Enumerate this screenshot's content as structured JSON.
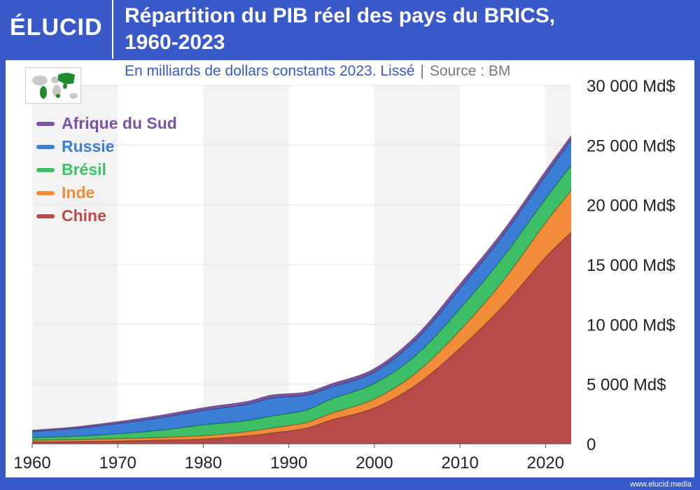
{
  "header": {
    "logo": "ÉLUCID",
    "title_line1": "Répartition du PIB réel des pays du BRICS,",
    "title_line2": "1960-2023"
  },
  "subtitle": {
    "main": "En milliards de dollars constants 2023. Lissé",
    "separator": "|",
    "source": "Source : BM"
  },
  "footer": "www.elucid.media",
  "chart_data": {
    "type": "area",
    "stacked": true,
    "title": "Répartition du PIB réel des pays du BRICS, 1960-2023",
    "subtitle": "En milliards de dollars constants 2023. Lissé | Source : BM",
    "x": [
      1960,
      1965,
      1970,
      1975,
      1980,
      1985,
      1988,
      1992,
      1995,
      2000,
      2005,
      2010,
      2015,
      2020,
      2023
    ],
    "xticks": [
      1960,
      1970,
      1980,
      1990,
      2000,
      2010,
      2020
    ],
    "xlim": [
      1960,
      2023
    ],
    "ylim": [
      0,
      30000
    ],
    "yticks": [
      {
        "value": 0,
        "label": "0"
      },
      {
        "value": 5000,
        "label": "5 000 Md$"
      },
      {
        "value": 10000,
        "label": "10 000 Md$"
      },
      {
        "value": 15000,
        "label": "15 000 Md$"
      },
      {
        "value": 20000,
        "label": "20 000 Md$"
      },
      {
        "value": 25000,
        "label": "25 000 Md$"
      },
      {
        "value": 30000,
        "label": "30 000 Md$"
      }
    ],
    "series": [
      {
        "name": "Chine",
        "color": "#b84a4a",
        "values": [
          150,
          180,
          230,
          300,
          400,
          650,
          900,
          1300,
          2000,
          3000,
          5000,
          8000,
          11500,
          15600,
          17700
        ]
      },
      {
        "name": "Inde",
        "color": "#f28c38",
        "values": [
          150,
          165,
          200,
          230,
          280,
          360,
          420,
          470,
          560,
          750,
          1000,
          1500,
          2100,
          2900,
          3500
        ]
      },
      {
        "name": "Brésil",
        "color": "#3dbf65",
        "values": [
          220,
          280,
          400,
          600,
          900,
          920,
          1000,
          1050,
          1200,
          1300,
          1500,
          1800,
          2000,
          2000,
          2100
        ]
      },
      {
        "name": "Russie",
        "color": "#3a7fd5",
        "values": [
          500,
          650,
          850,
          1050,
          1200,
          1350,
          1500,
          1250,
          1000,
          950,
          1300,
          1700,
          1800,
          1950,
          2100
        ]
      },
      {
        "name": "Afrique du Sud",
        "color": "#7b52a8",
        "values": [
          120,
          140,
          180,
          210,
          240,
          250,
          260,
          260,
          270,
          300,
          340,
          380,
          390,
          390,
          400
        ]
      }
    ],
    "legend": [
      "Afrique du Sud",
      "Russie",
      "Brésil",
      "Inde",
      "Chine"
    ],
    "legend_position": "top-left",
    "grid": true
  }
}
